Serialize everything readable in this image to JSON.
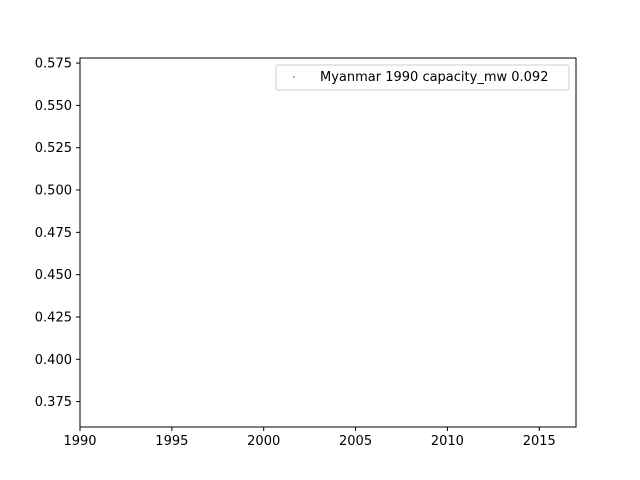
{
  "chart_data": {
    "type": "scatter",
    "title": "",
    "xlabel": "",
    "ylabel": "",
    "xlim": [
      1990,
      2017
    ],
    "ylim": [
      0.36,
      0.578
    ],
    "x_ticks": [
      "1990",
      "1995",
      "2000",
      "2005",
      "2010",
      "2015"
    ],
    "y_ticks": [
      "0.375",
      "0.400",
      "0.425",
      "0.450",
      "0.475",
      "0.500",
      "0.525",
      "0.550",
      "0.575"
    ],
    "grid": false,
    "legend_position": "top-right",
    "series": [
      {
        "name": "Myanmar 1990 capacity_mw 0.092",
        "color": "#d62728",
        "points": []
      }
    ]
  }
}
